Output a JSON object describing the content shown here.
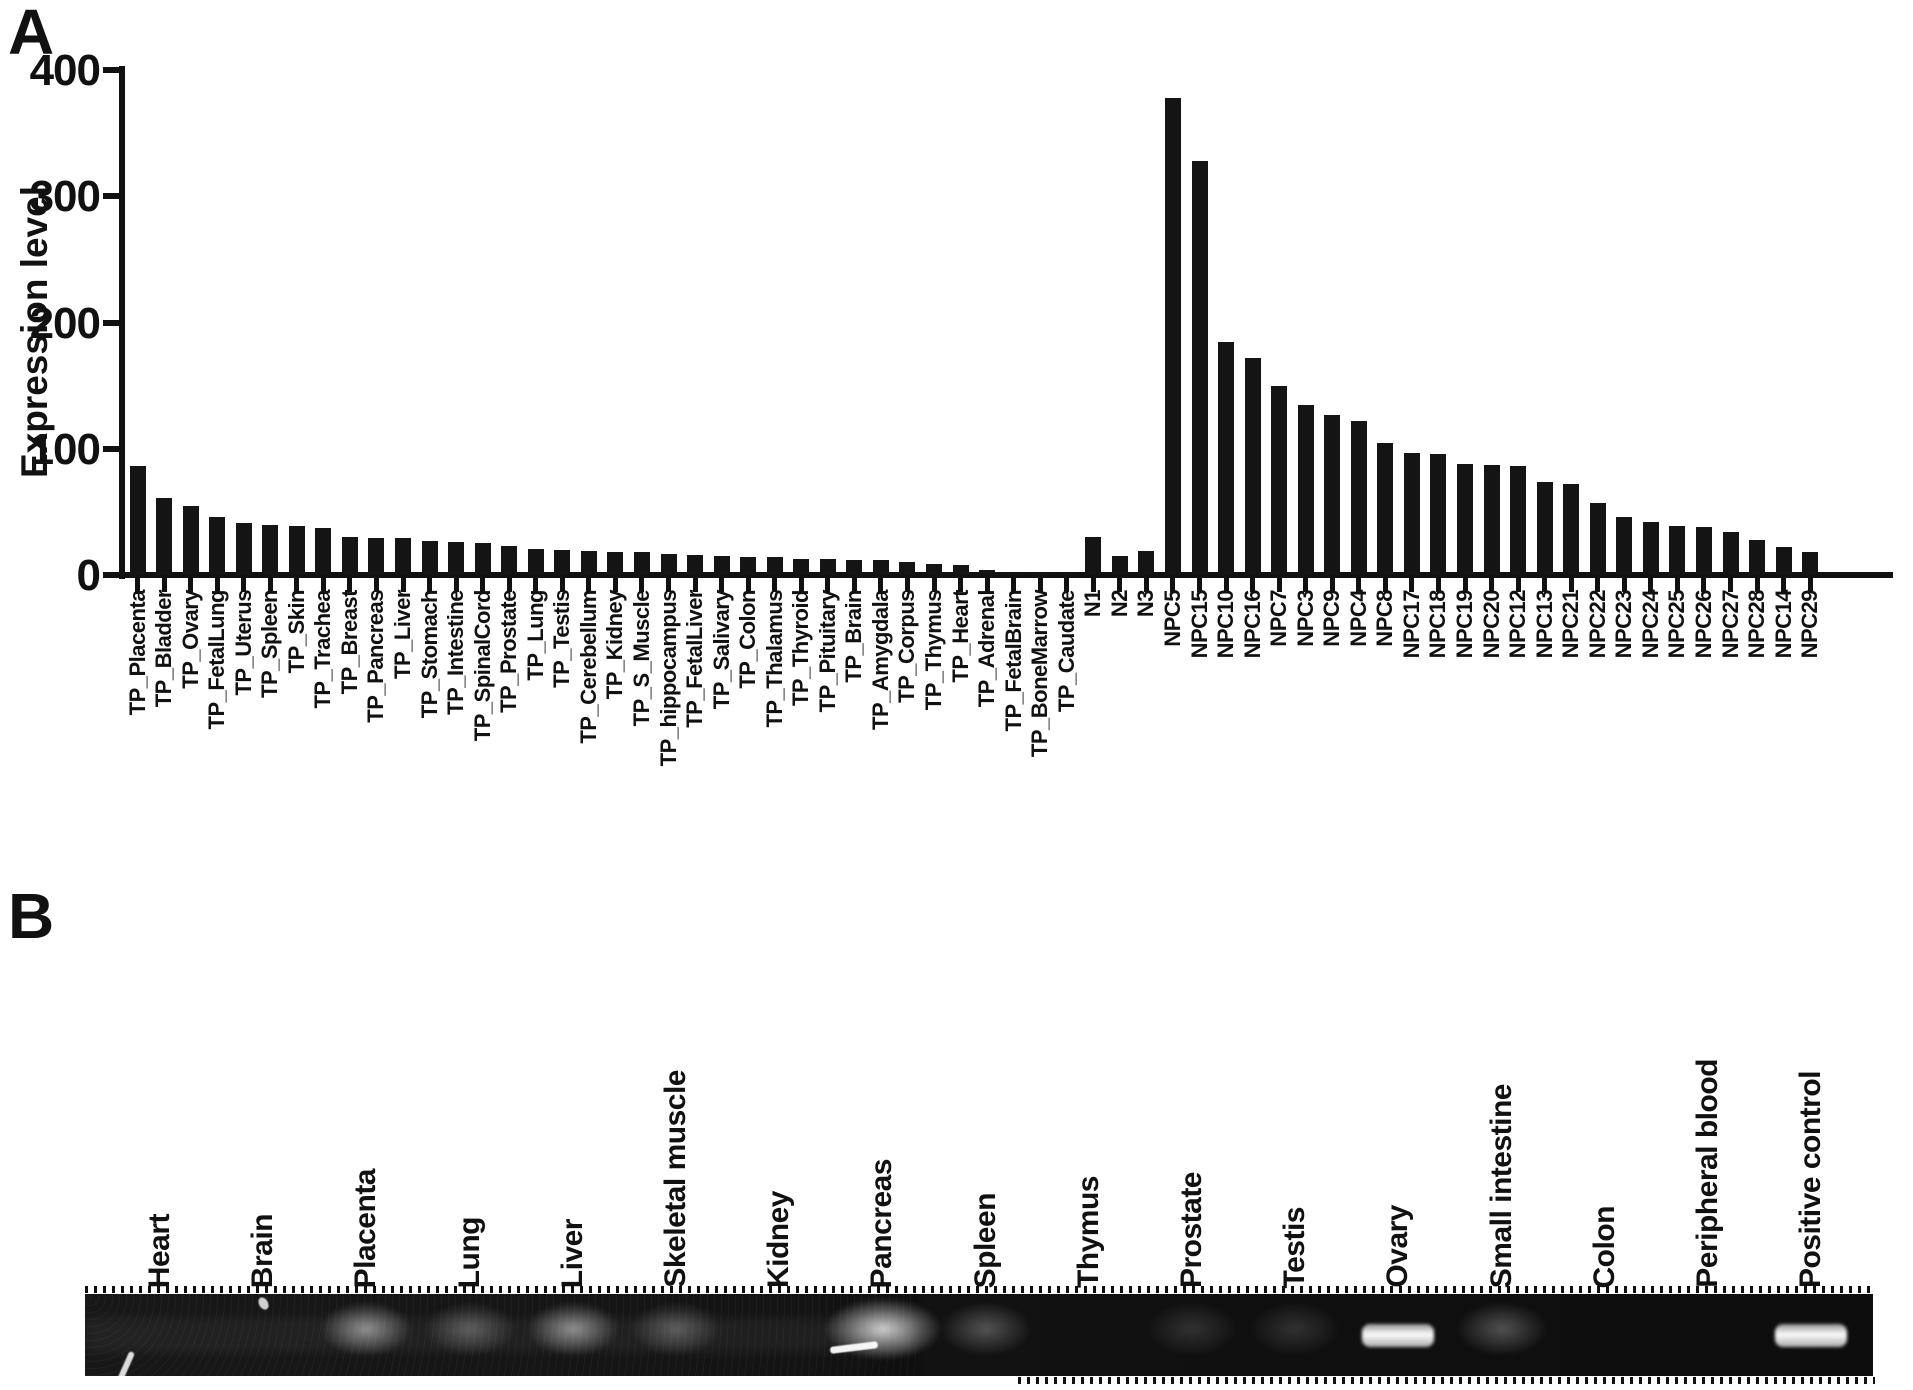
{
  "figure": {
    "panel_a_label": "A",
    "panel_b_label": "B"
  },
  "chart_data": {
    "type": "bar",
    "title": "",
    "xlabel": "",
    "ylabel": "Expression level",
    "ylim": [
      0,
      400
    ],
    "yticks": [
      0,
      100,
      200,
      300,
      400
    ],
    "grid": false,
    "legend": "none",
    "bar_color": "#141414",
    "categories": [
      "TP_Placenta",
      "TP_Bladder",
      "TP_Ovary",
      "TP_FetalLung",
      "TP_Uterus",
      "TP_Spleen",
      "TP_Skin",
      "TP_Trachea",
      "TP_Breast",
      "TP_Pancreas",
      "TP_Liver",
      "TP_Stomach",
      "TP_Intestine",
      "TP_SpinalCord",
      "TP_Prostate",
      "TP_Lung",
      "TP_Testis",
      "TP_Cerebellum",
      "TP_Kidney",
      "TP_S_Muscle",
      "TP_hippocampus",
      "TP_FetalLiver",
      "TP_Salivary",
      "TP_Colon",
      "TP_Thalamus",
      "TP_Thyroid",
      "TP_Pituitary",
      "TP_Brain",
      "TP_Amygdala",
      "TP_Corpus",
      "TP_Thymus",
      "TP_Heart",
      "TP_Adrenal",
      "TP_FetalBrain",
      "TP_BoneMarrow",
      "TP_Caudate",
      "N1",
      "N2",
      "N3",
      "NPC5",
      "NPC15",
      "NPC10",
      "NPC16",
      "NPC7",
      "NPC3",
      "NPC9",
      "NPC4",
      "NPC8",
      "NPC17",
      "NPC18",
      "NPC19",
      "NPC20",
      "NPC12",
      "NPC13",
      "NPC21",
      "NPC22",
      "NPC23",
      "NPC24",
      "NPC25",
      "NPC26",
      "NPC27",
      "NPC28",
      "NPC14",
      "NPC29"
    ],
    "values": [
      86,
      61,
      55,
      46,
      41,
      40,
      39,
      37,
      30,
      29,
      29,
      27,
      26,
      25,
      23,
      21,
      20,
      19,
      18,
      18,
      17,
      16,
      15,
      14,
      14,
      13,
      13,
      12,
      12,
      10,
      9,
      8,
      4,
      1,
      1,
      1,
      30,
      15,
      19,
      378,
      328,
      185,
      172,
      150,
      135,
      127,
      122,
      105,
      97,
      96,
      88,
      87,
      86,
      74,
      72,
      57,
      46,
      42,
      39,
      38,
      34,
      28,
      22,
      18
    ]
  },
  "gel": {
    "lanes": [
      {
        "label": "Heart",
        "band": "none"
      },
      {
        "label": "Brain",
        "band": "none"
      },
      {
        "label": "Placenta",
        "band": "medium"
      },
      {
        "label": "Lung",
        "band": "faint"
      },
      {
        "label": "Liver",
        "band": "medium"
      },
      {
        "label": "Skeletal muscle",
        "band": "faint"
      },
      {
        "label": "Kidney",
        "band": "none"
      },
      {
        "label": "Pancreas",
        "band": "strong"
      },
      {
        "label": "Spleen",
        "band": "faint"
      },
      {
        "label": "Thymus",
        "band": "none"
      },
      {
        "label": "Prostate",
        "band": "trace"
      },
      {
        "label": "Testis",
        "band": "trace"
      },
      {
        "label": "Ovary",
        "band": "bright"
      },
      {
        "label": "Small intestine",
        "band": "faint"
      },
      {
        "label": "Colon",
        "band": "none"
      },
      {
        "label": "Peripheral blood",
        "band": "none"
      },
      {
        "label": "Positive control",
        "band": "bright"
      }
    ],
    "artifacts": [
      {
        "lane": "Heart",
        "type": "diagonal-streak"
      },
      {
        "lane": "Brain",
        "type": "speck"
      },
      {
        "lane": "Pancreas",
        "type": "short-streak"
      }
    ]
  }
}
